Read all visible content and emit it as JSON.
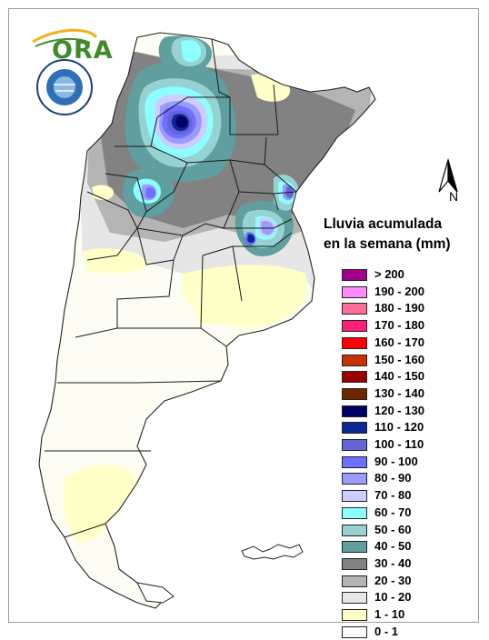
{
  "logo": {
    "text": "ORA"
  },
  "north_label": "N",
  "legend": {
    "title_line1": "Lluvia acumulada",
    "title_line2": "en la semana (mm)",
    "items": [
      {
        "label": "> 200",
        "color": "#a0008c"
      },
      {
        "label": "190 - 200",
        "color": "#ff8cff"
      },
      {
        "label": "180 - 190",
        "color": "#ff6e9a"
      },
      {
        "label": "170 - 180",
        "color": "#ff1e78"
      },
      {
        "label": "160 - 170",
        "color": "#ff0000"
      },
      {
        "label": "150 - 160",
        "color": "#c83200"
      },
      {
        "label": "140 - 150",
        "color": "#9a0000"
      },
      {
        "label": "130 - 140",
        "color": "#6e2800"
      },
      {
        "label": "120 - 130",
        "color": "#000064"
      },
      {
        "label": "110 - 120",
        "color": "#0a2896"
      },
      {
        "label": "100 - 110",
        "color": "#6464d2"
      },
      {
        "label": "90 - 100",
        "color": "#6e6eff"
      },
      {
        "label": "80 - 90",
        "color": "#9a9aff"
      },
      {
        "label": "70 - 80",
        "color": "#cdcdff"
      },
      {
        "label": "60 - 70",
        "color": "#8cffff"
      },
      {
        "label": "50 - 60",
        "color": "#96d2d2"
      },
      {
        "label": "40 - 50",
        "color": "#5f9f9f"
      },
      {
        "label": "30 - 40",
        "color": "#828282"
      },
      {
        "label": "20 - 30",
        "color": "#b4b4b4"
      },
      {
        "label": "10 - 20",
        "color": "#e6e6e6"
      },
      {
        "label": "1 - 10",
        "color": "#ffffc8"
      },
      {
        "label": "0 - 1",
        "color": "#ffffff"
      }
    ]
  }
}
